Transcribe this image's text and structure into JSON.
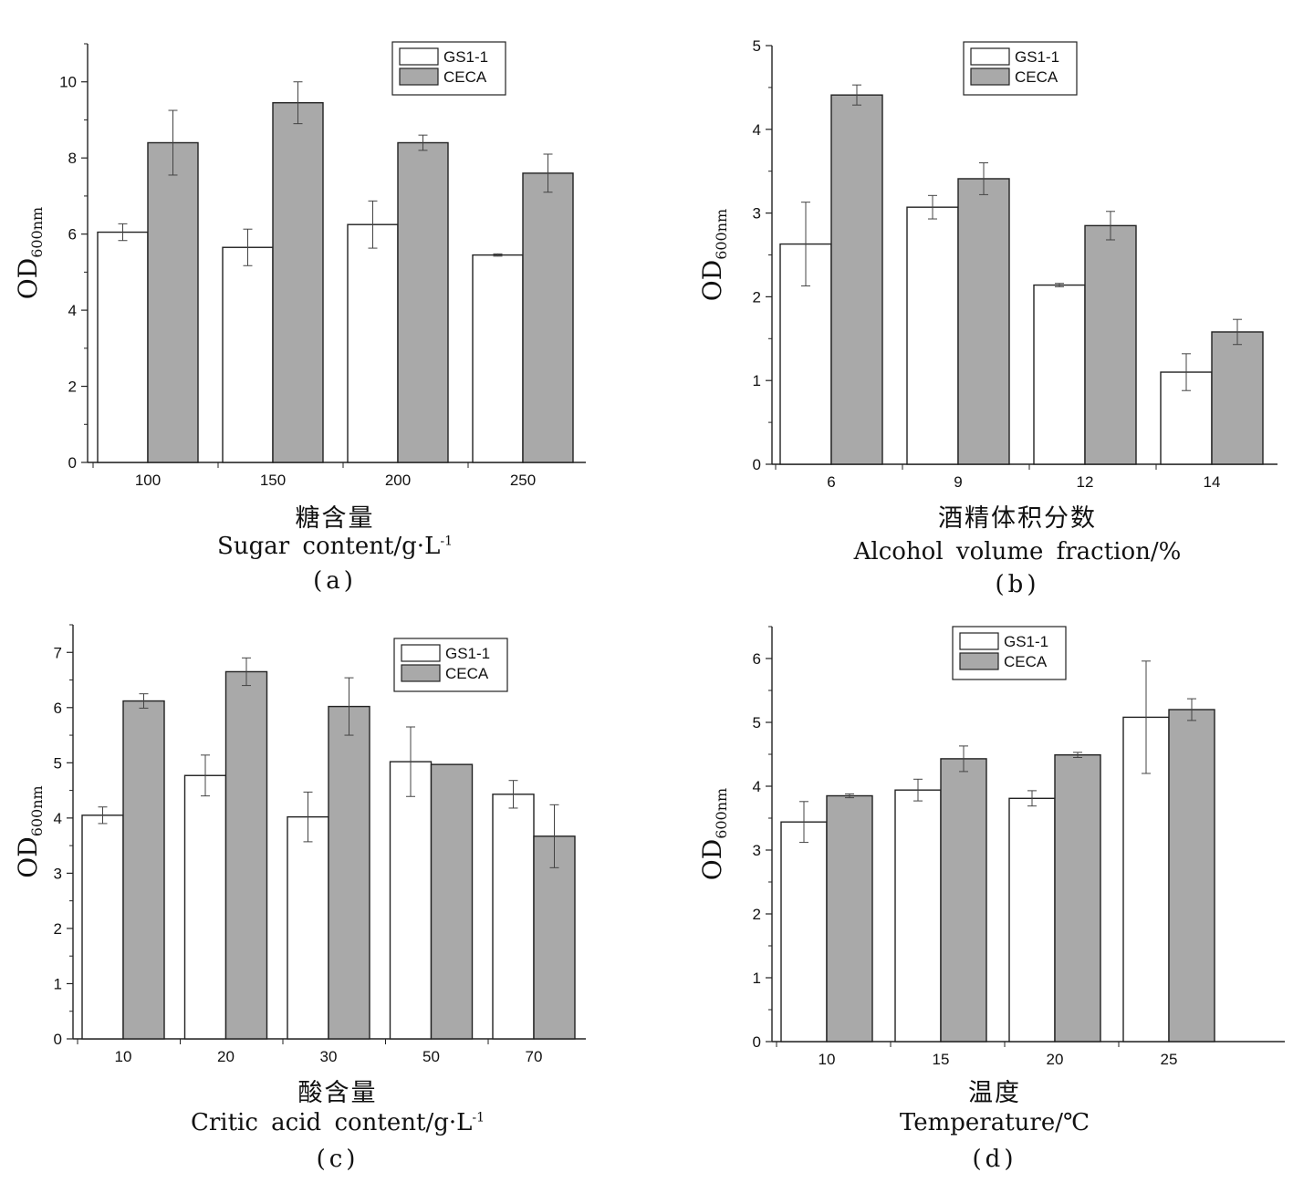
{
  "colors": {
    "series1": "#ffffff",
    "series2": "#a9a9a9",
    "stroke": "#222222"
  },
  "chart_data": [
    {
      "id": "a",
      "type": "bar",
      "categories": [
        "100",
        "150",
        "200",
        "250"
      ],
      "series": [
        {
          "name": "GS1-1",
          "values": [
            6.05,
            5.65,
            6.25,
            5.45
          ],
          "errors": [
            0.22,
            0.48,
            0.62,
            0.03
          ]
        },
        {
          "name": "CECA",
          "values": [
            8.4,
            9.45,
            8.4,
            7.6
          ],
          "errors": [
            0.85,
            0.55,
            0.2,
            0.5
          ]
        }
      ],
      "ylim": [
        0,
        11
      ],
      "yticks": [
        0,
        2,
        4,
        6,
        8,
        10
      ],
      "ylabel_main": "OD",
      "ylabel_sub": "600nm",
      "xlabel_zh": "糖含量",
      "xlabel_en": "Sugar content/g·L",
      "xlabel_sup": "-1",
      "caption": "(a)",
      "legend": "top-right",
      "grid": false
    },
    {
      "id": "b",
      "type": "bar",
      "categories": [
        "6",
        "9",
        "12",
        "14"
      ],
      "series": [
        {
          "name": "GS1-1",
          "values": [
            2.63,
            3.07,
            2.14,
            1.1
          ],
          "errors": [
            0.5,
            0.14,
            0.02,
            0.22
          ]
        },
        {
          "name": "CECA",
          "values": [
            4.41,
            3.41,
            2.85,
            1.58
          ],
          "errors": [
            0.12,
            0.19,
            0.17,
            0.15
          ]
        }
      ],
      "ylim": [
        0,
        5
      ],
      "yticks": [
        0,
        1,
        2,
        3,
        4,
        5
      ],
      "ylabel_main": "OD",
      "ylabel_sub": "600nm",
      "xlabel_zh": "酒精体积分数",
      "xlabel_en": "Alcohol volume fraction/%",
      "xlabel_sup": "",
      "caption": "(b)",
      "legend": "top-right",
      "grid": false
    },
    {
      "id": "c",
      "type": "bar",
      "categories": [
        "10",
        "20",
        "30",
        "50",
        "70"
      ],
      "series": [
        {
          "name": "GS1-1",
          "values": [
            4.05,
            4.77,
            4.02,
            5.02,
            4.43
          ],
          "errors": [
            0.15,
            0.37,
            0.45,
            0.63,
            0.25
          ]
        },
        {
          "name": "CECA",
          "values": [
            6.12,
            6.65,
            6.02,
            4.97,
            3.67
          ],
          "errors": [
            0.13,
            0.25,
            0.52,
            0.0,
            0.57
          ]
        }
      ],
      "ylim": [
        0,
        7.5
      ],
      "yticks": [
        0,
        1,
        2,
        3,
        4,
        5,
        6,
        7
      ],
      "ylabel_main": "OD",
      "ylabel_sub": "600nm",
      "xlabel_zh": "酸含量",
      "xlabel_en": "Critic acid content/g·L",
      "xlabel_sup": "-1",
      "caption": "(c)",
      "legend": "top-right",
      "grid": false
    },
    {
      "id": "d",
      "type": "bar",
      "categories": [
        "10",
        "15",
        "20",
        "25"
      ],
      "series": [
        {
          "name": "GS1-1",
          "values": [
            3.44,
            3.94,
            3.81,
            5.08
          ],
          "errors": [
            0.32,
            0.17,
            0.12,
            0.88
          ]
        },
        {
          "name": "CECA",
          "values": [
            3.85,
            4.43,
            4.49,
            5.2
          ],
          "errors": [
            0.03,
            0.2,
            0.04,
            0.17
          ]
        }
      ],
      "ylim": [
        0,
        6.5
      ],
      "yticks": [
        0,
        1,
        2,
        3,
        4,
        5,
        6
      ],
      "ylabel_main": "OD",
      "ylabel_sub": "600nm",
      "xlabel_zh": "温度",
      "xlabel_en": "Temperature/℃",
      "xlabel_sup": "",
      "caption": "(d)",
      "legend": "top-left",
      "grid": false
    }
  ]
}
